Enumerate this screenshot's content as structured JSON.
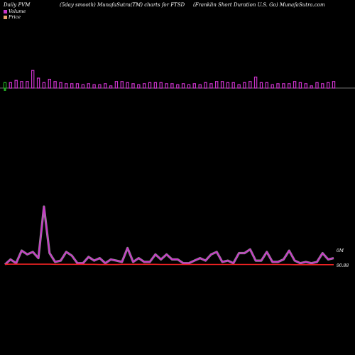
{
  "header": {
    "left": "Daily PVM",
    "middle": "(5day smooth) MunafaSutra(TM) charts for FTSD",
    "right": "(Franklin Short Duration U.S. Go) MunafaSutra.com"
  },
  "legend": [
    {
      "label": "Volume",
      "color": "#cc33cc"
    },
    {
      "label": "Price",
      "color": "#e8a070"
    }
  ],
  "chart_data": {
    "type": "bar",
    "bar_series": {
      "name": "Volume",
      "values": [
        5,
        5,
        7,
        6,
        6,
        16,
        9,
        5,
        8,
        6,
        5,
        4,
        4,
        4,
        3,
        4,
        3,
        3,
        4,
        2,
        6,
        6,
        5,
        4,
        3,
        4,
        5,
        5,
        5,
        4,
        4,
        3,
        4,
        3,
        4,
        3,
        5,
        4,
        6,
        6,
        5,
        5,
        3,
        5,
        6,
        10,
        5,
        5,
        3,
        4,
        4,
        4,
        6,
        5,
        4,
        2,
        5,
        4,
        5,
        6
      ],
      "colors_by_index": {
        "0": "#22aa22"
      }
    },
    "line_series": [
      {
        "name": "Volume",
        "color": "#cc33cc",
        "values": [
          2,
          6,
          3,
          13,
          10,
          12,
          7,
          48,
          11,
          4,
          5,
          12,
          9,
          3,
          3,
          8,
          5,
          7,
          3,
          6,
          5,
          4,
          15,
          4,
          7,
          4,
          4,
          10,
          6,
          10,
          6,
          6,
          3,
          3,
          5,
          7,
          5,
          10,
          12,
          4,
          5,
          3,
          11,
          11,
          14,
          5,
          5,
          12,
          4,
          4,
          6,
          13,
          5,
          3,
          4,
          3,
          4,
          11,
          6,
          7
        ]
      },
      {
        "name": "Price",
        "color": "#ee2222",
        "values": [
          2.1,
          2.2,
          2.2,
          2.2,
          2.2,
          2.2,
          2.2,
          2.2,
          2.2,
          2.1,
          2.1,
          2.1,
          2.1,
          2.1,
          2.1,
          2.1,
          2.1,
          1.9,
          1.9,
          1.9,
          1.9,
          2.1,
          2.1,
          2.1,
          2.1,
          2.1,
          2.1,
          2.1,
          2.0,
          2.0,
          2.0,
          2.0,
          2.0,
          2.0,
          2.0,
          2.0,
          2.0,
          2.0,
          2.0,
          2.0,
          2.0,
          2.0,
          2.0,
          2.0,
          2.0,
          2.0,
          2.0,
          2.0,
          2.0,
          2.0,
          1.9,
          1.9,
          1.8,
          1.8,
          1.8,
          1.8,
          1.8,
          1.8,
          1.8,
          1.8
        ]
      }
    ],
    "annotations": {
      "volume_label": "0M",
      "price_label": "90.88"
    }
  }
}
